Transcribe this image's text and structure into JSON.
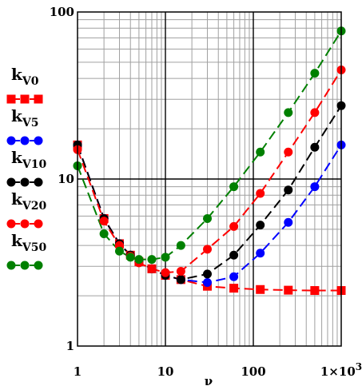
{
  "chart_data": {
    "type": "line",
    "x_scale": "log",
    "y_scale": "log",
    "xlim": [
      1,
      1000
    ],
    "ylim": [
      1,
      100
    ],
    "x_ticks": [
      {
        "value": 1,
        "label": "1"
      },
      {
        "value": 10,
        "label": "10"
      },
      {
        "value": 100,
        "label": "100"
      },
      {
        "value": 1000,
        "label": "1×10",
        "sup": "3"
      }
    ],
    "y_ticks": [
      {
        "value": 1,
        "label": "1"
      },
      {
        "value": 10,
        "label": "10"
      },
      {
        "value": 100,
        "label": "100"
      }
    ],
    "xlabel": "ν",
    "ylabel": "",
    "grid": true,
    "legend_position": "left",
    "series": [
      {
        "name": "kV0",
        "k": "k",
        "sub": "V0",
        "color": "#ff0000",
        "marker": "square",
        "x": [
          1,
          2,
          3,
          4,
          5,
          7,
          10,
          15,
          30,
          60,
          120,
          250,
          500,
          1000
        ],
        "y": [
          16,
          5.8,
          4.1,
          3.5,
          3.2,
          2.9,
          2.65,
          2.5,
          2.28,
          2.22,
          2.18,
          2.16,
          2.15,
          2.15
        ]
      },
      {
        "name": "kV5",
        "k": "k",
        "sub": "V5",
        "color": "#0000ff",
        "marker": "circle",
        "x": [
          1,
          2,
          3,
          4,
          5,
          7,
          10,
          15,
          30,
          60,
          120,
          250,
          500,
          1000
        ],
        "y": [
          16,
          5.8,
          4.1,
          3.5,
          3.2,
          2.9,
          2.65,
          2.5,
          2.4,
          2.6,
          3.6,
          5.5,
          9,
          16
        ]
      },
      {
        "name": "kV10",
        "k": "k",
        "sub": "V10",
        "color": "#000000",
        "marker": "circle",
        "x": [
          1,
          2,
          3,
          4,
          5,
          7,
          10,
          15,
          30,
          60,
          120,
          250,
          500,
          1000
        ],
        "y": [
          16,
          5.8,
          4.1,
          3.5,
          3.2,
          2.9,
          2.65,
          2.5,
          2.7,
          3.5,
          5.3,
          8.6,
          15.5,
          27.5
        ]
      },
      {
        "name": "kV20",
        "k": "k",
        "sub": "V20",
        "color": "#ff0000",
        "marker": "circle",
        "x": [
          1,
          2,
          3,
          4,
          5,
          7,
          10,
          15,
          30,
          60,
          120,
          250,
          500,
          1000
        ],
        "y": [
          15,
          5.6,
          4.0,
          3.45,
          3.15,
          2.9,
          2.75,
          2.8,
          3.8,
          5.2,
          8.2,
          14.5,
          25,
          45
        ]
      },
      {
        "name": "kV50",
        "k": "k",
        "sub": "V50",
        "color": "#008000",
        "marker": "circle",
        "x": [
          1,
          2,
          3,
          4,
          5,
          7,
          10,
          15,
          30,
          60,
          120,
          250,
          500,
          1000
        ],
        "y": [
          12,
          4.7,
          3.7,
          3.4,
          3.3,
          3.3,
          3.4,
          4.0,
          5.8,
          9.0,
          14.5,
          25,
          43,
          77
        ]
      }
    ]
  }
}
